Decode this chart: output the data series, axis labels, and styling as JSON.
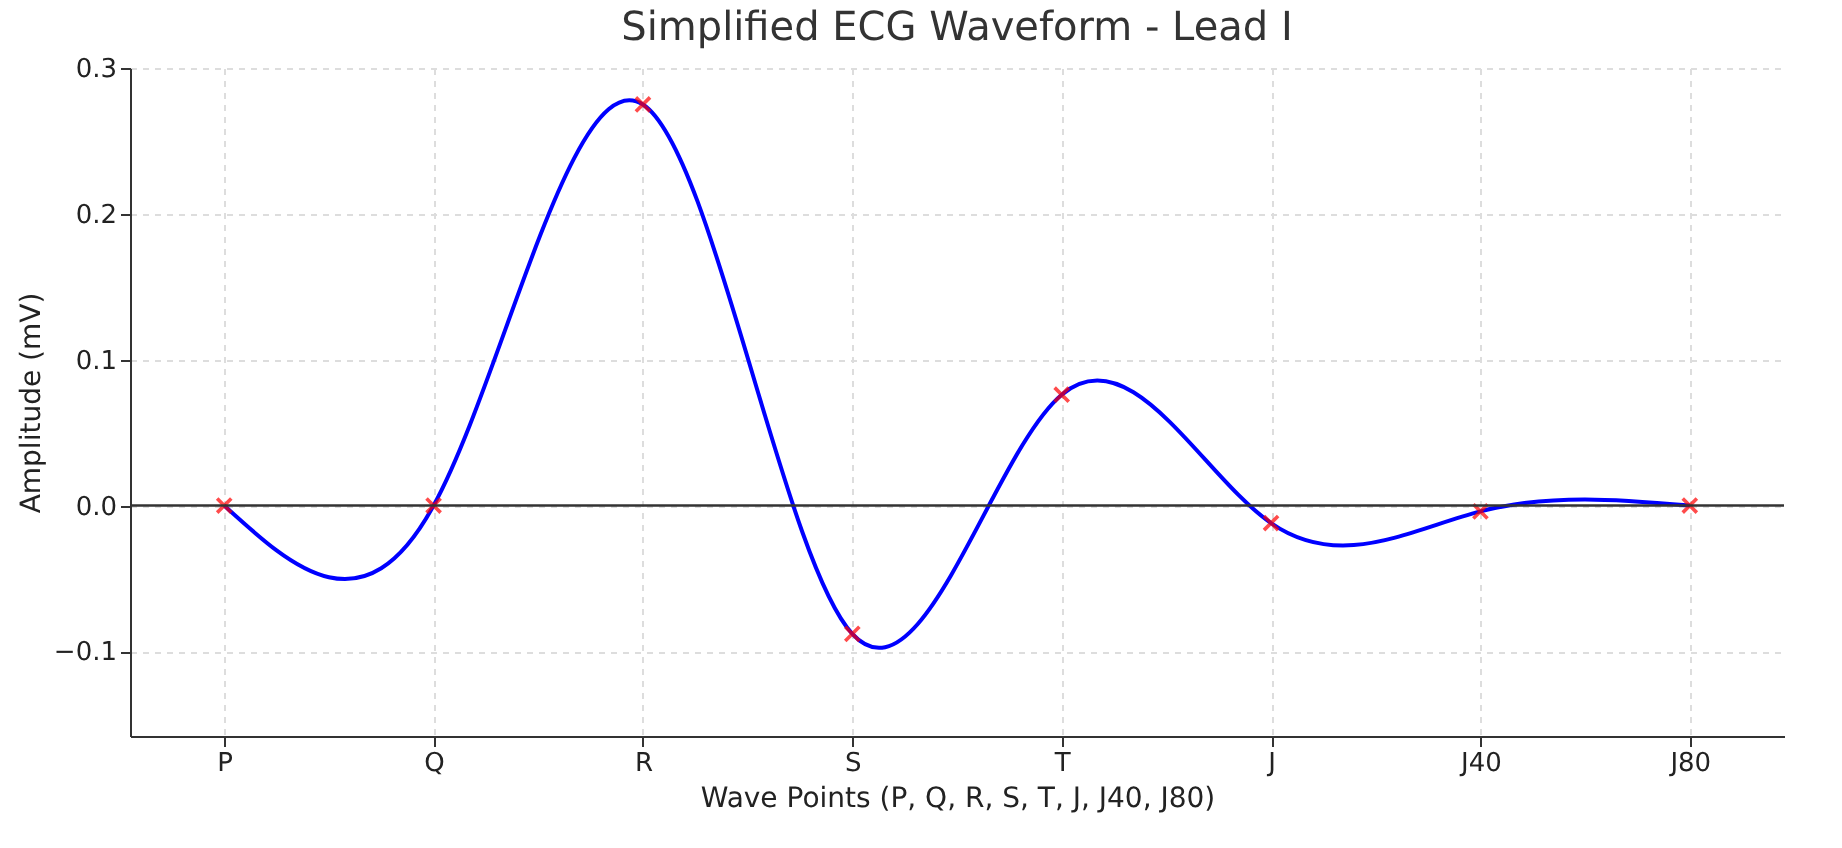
{
  "chart_data": {
    "type": "line",
    "title": "Simplified ECG Waveform - Lead I",
    "xlabel": "Wave Points (P, Q, R, S, T, J, J40, J80)",
    "ylabel": "Amplitude (mV)",
    "categories": [
      "P",
      "Q",
      "R",
      "S",
      "T",
      "J",
      "J40",
      "J80"
    ],
    "series": [
      {
        "type": "line",
        "color": "#0000ff",
        "marker": "none",
        "values": [
          0,
          0,
          0.275,
          -0.088,
          0.076,
          -0.012,
          -0.004,
          0
        ]
      },
      {
        "type": "scatter",
        "color": "#ff0000",
        "marker": "cross",
        "values": [
          0,
          0,
          0.275,
          -0.088,
          0.076,
          -0.012,
          -0.004,
          0
        ]
      }
    ],
    "ylim": [
      -0.158,
      0.3
    ],
    "yticks": [
      {
        "value": -0.1,
        "label": "−0.1"
      },
      {
        "value": 0,
        "label": "0.0"
      },
      {
        "value": 0.1,
        "label": "0.1"
      },
      {
        "value": 0.2,
        "label": "0.2"
      },
      {
        "value": 0.3,
        "label": "0.3"
      }
    ],
    "ref_lines": [
      {
        "axis": "y",
        "value": 0,
        "color": "#333333"
      }
    ],
    "grid": true
  }
}
